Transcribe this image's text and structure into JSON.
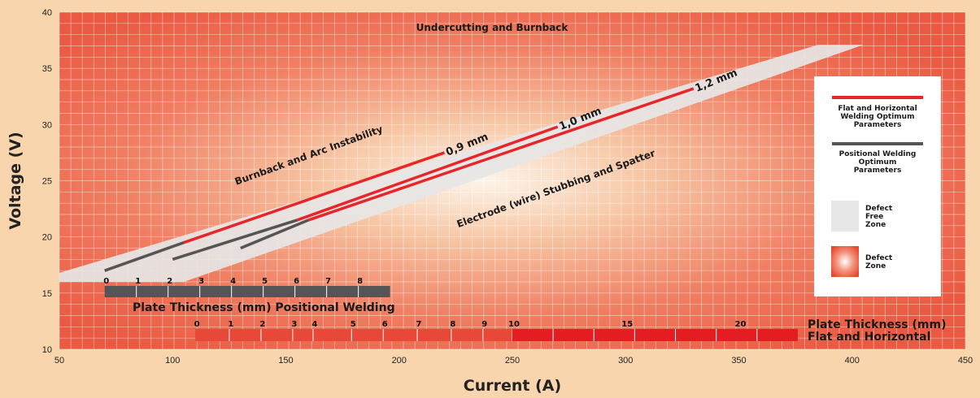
{
  "chart_data": {
    "type": "line",
    "xlabel": "Current (A)",
    "ylabel": "Voltage (V)",
    "xlim": [
      50,
      450
    ],
    "ylim": [
      10,
      40
    ],
    "x_ticks": [
      50,
      100,
      150,
      200,
      250,
      300,
      350,
      400,
      450
    ],
    "y_ticks": [
      10,
      15,
      20,
      25,
      30,
      35,
      40
    ],
    "grid": true,
    "defect_free_zone": [
      [
        50,
        16
      ],
      [
        50,
        16.8
      ],
      [
        385,
        37.1
      ],
      [
        405,
        37.1
      ],
      [
        105,
        16
      ],
      [
        50,
        16
      ]
    ],
    "series": [
      {
        "name": "0,9 mm",
        "flat_horizontal": [
          [
            105,
            19.5
          ],
          [
            220,
            27.5
          ]
        ],
        "positional": [
          [
            70,
            17
          ],
          [
            105,
            19.5
          ]
        ]
      },
      {
        "name": "1,0 mm",
        "flat_horizontal": [
          [
            155,
            21.5
          ],
          [
            270,
            29.8
          ]
        ],
        "positional": [
          [
            100,
            18
          ],
          [
            155,
            21.5
          ]
        ]
      },
      {
        "name": "1,2 mm",
        "flat_horizontal": [
          [
            160,
            21.5
          ],
          [
            330,
            33.2
          ]
        ],
        "positional": [
          [
            130,
            19
          ],
          [
            160,
            21.5
          ]
        ]
      }
    ],
    "zone_labels": [
      "Undercutting and Burnback",
      "Burnback and Arc Instability",
      "Electrode (wire) Stubbing and Spatter"
    ],
    "plate_thickness_positional": {
      "caption": "Plate Thickness (mm) Positional Welding",
      "ticks": [
        "0",
        "1",
        "2",
        "3",
        "4",
        "5",
        "6",
        "7",
        "8"
      ],
      "currents": [
        70,
        84,
        98,
        112,
        126,
        140,
        154,
        168,
        182
      ]
    },
    "plate_thickness_flat": {
      "caption_1": "Plate Thickness (mm)",
      "caption_2": "Flat and Horizontal",
      "ticks": [
        "0",
        "1",
        "2",
        "3",
        "4",
        "5",
        "6",
        "7",
        "8",
        "9",
        "10",
        "15",
        "20"
      ],
      "currents": [
        110,
        125,
        139,
        153,
        162,
        179,
        193,
        208,
        223,
        237,
        250,
        300,
        350
      ]
    },
    "legend": {
      "flat": "Flat and Horizontal Welding Optimum Parameters",
      "positional": "Positional Welding Optimum Parameters",
      "defect_free": "Defect Free Zone",
      "defect": "Defect Zone"
    },
    "colors": {
      "flat_line": "#e8262a",
      "positional_line": "#555555",
      "defect_free": "#e6e6e6",
      "defect_zone": "#ef5a40"
    }
  }
}
